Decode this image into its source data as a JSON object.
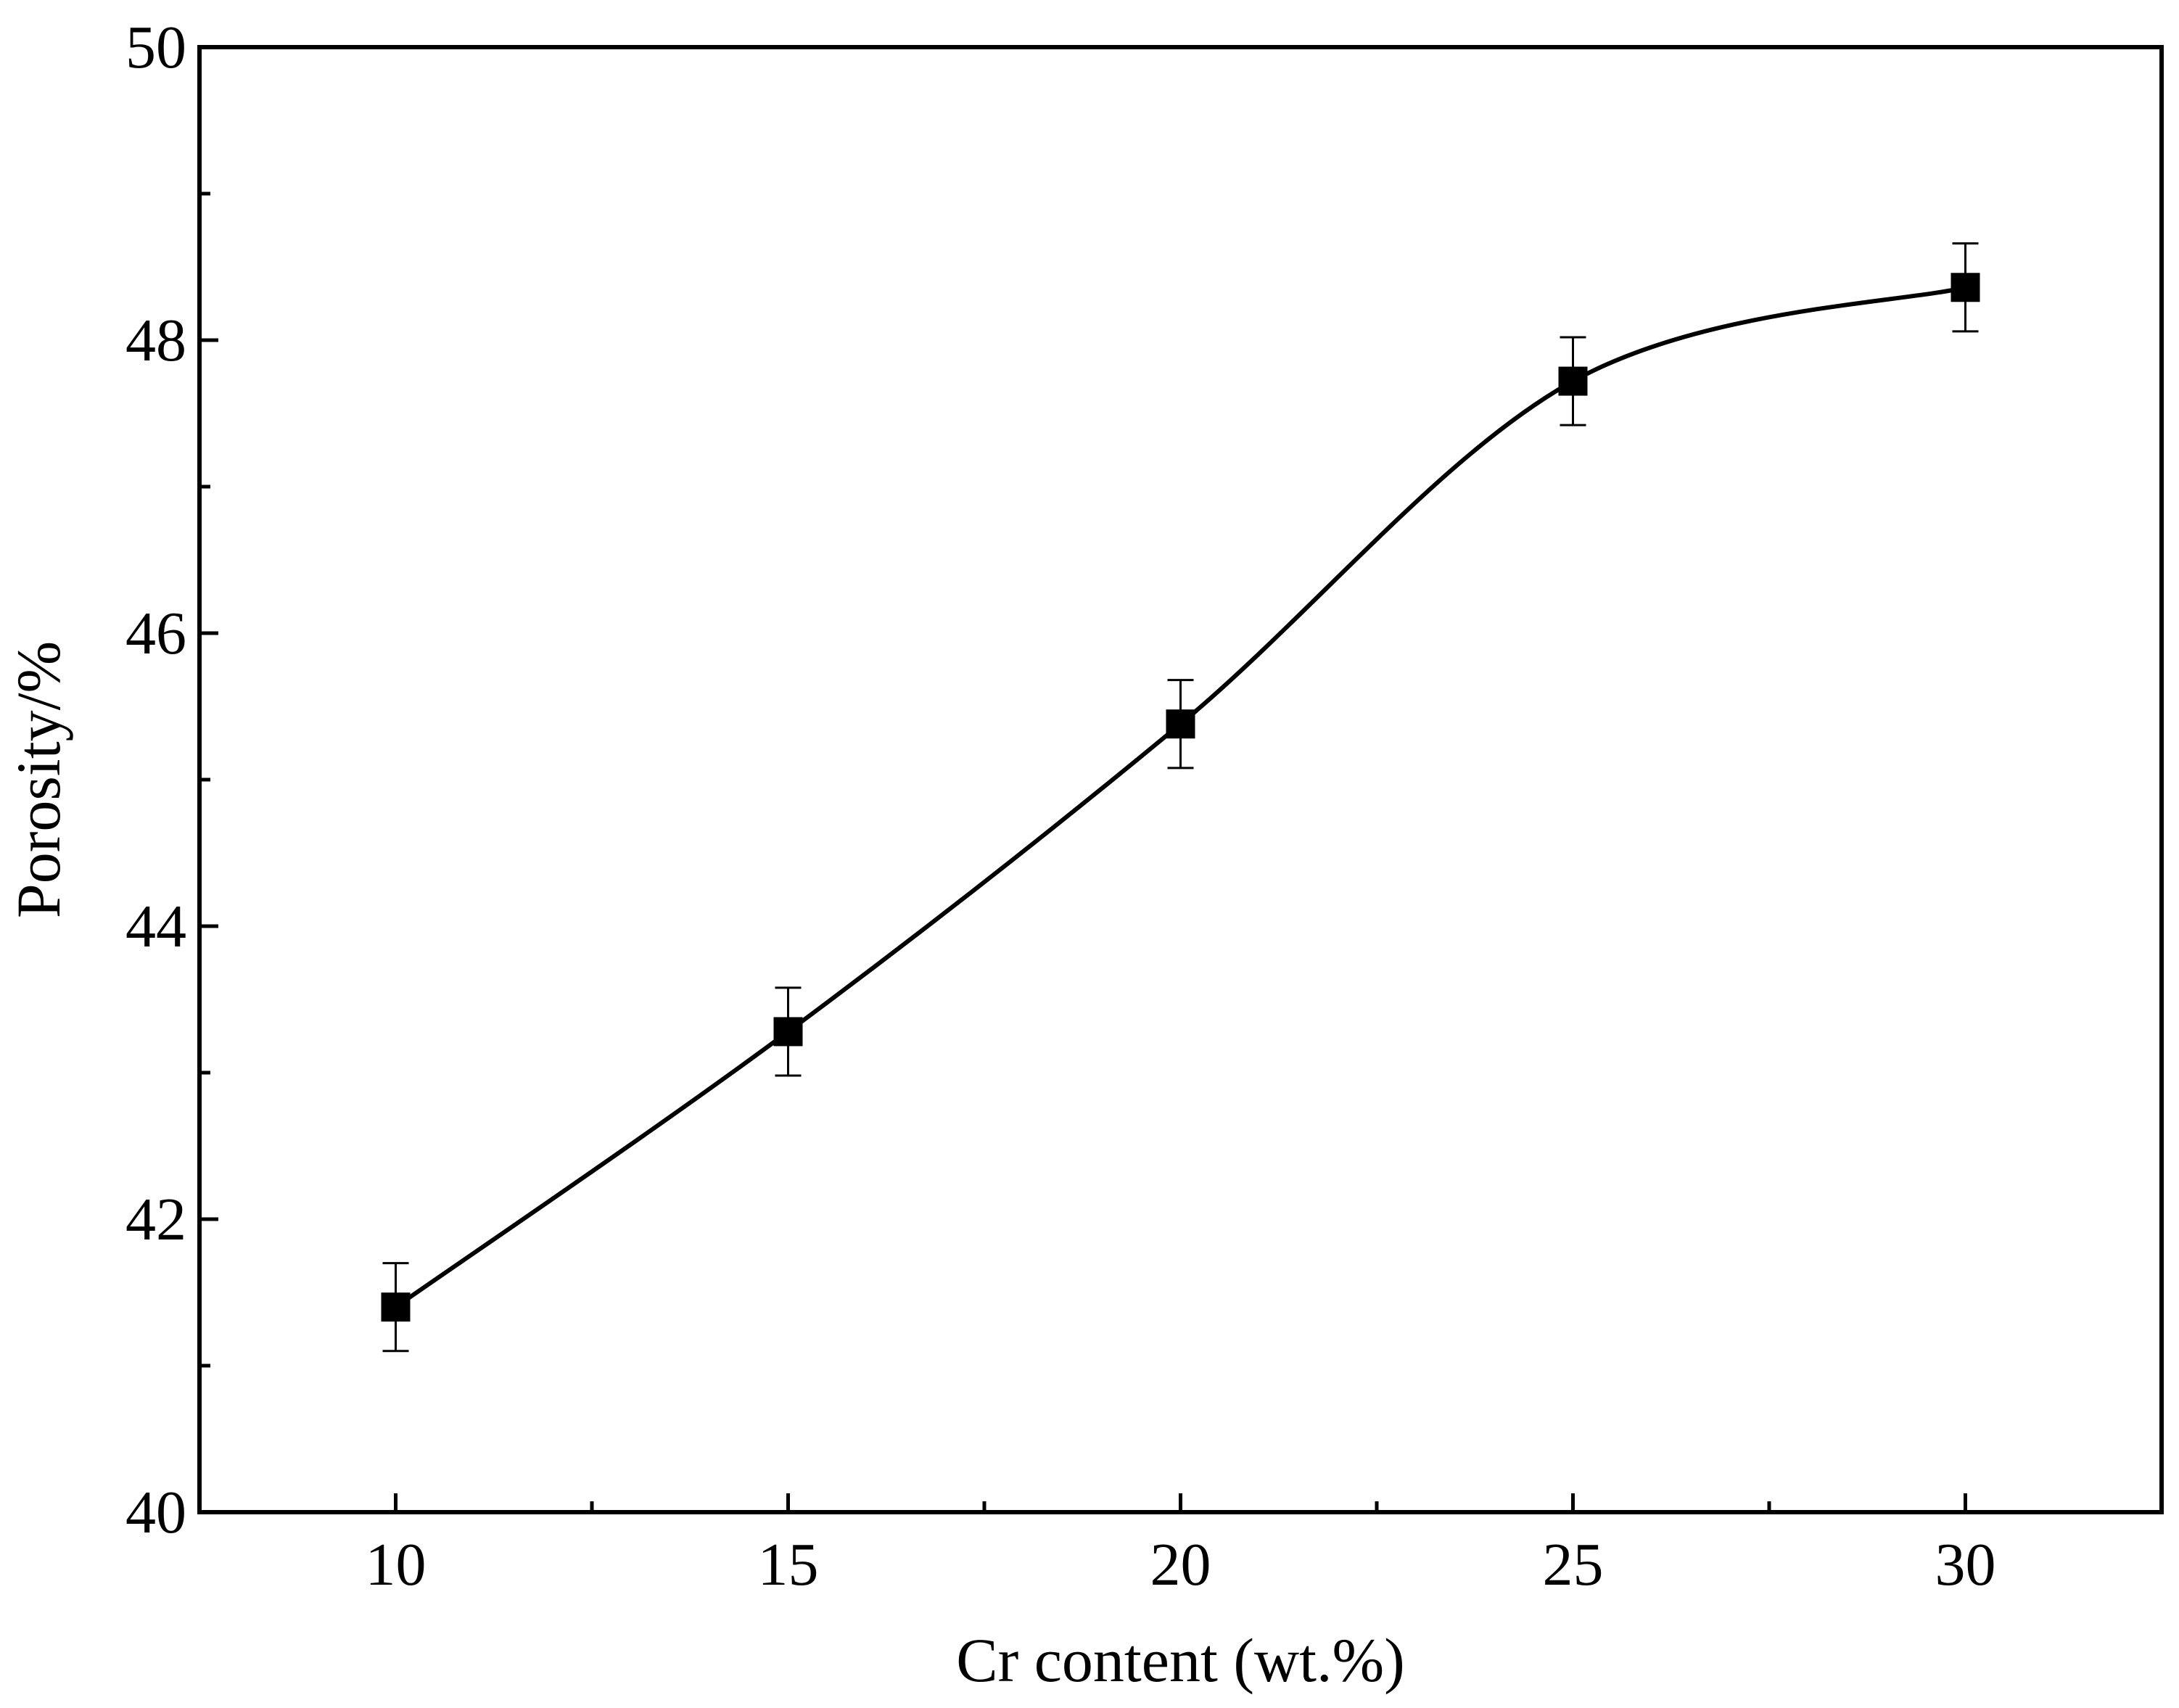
{
  "chart_data": {
    "type": "scatter",
    "title": "",
    "xlabel": "Cr content (wt.%)",
    "ylabel": "Porosity/%",
    "xlim": [
      7.5,
      32.5
    ],
    "ylim": [
      40,
      50
    ],
    "x_ticks": [
      10,
      15,
      20,
      25,
      30
    ],
    "y_ticks": [
      40,
      42,
      44,
      46,
      48,
      50
    ],
    "x_minor_ticks": [
      12.5,
      17.5,
      22.5,
      27.5
    ],
    "y_minor_ticks": [
      41,
      43,
      45,
      47,
      49
    ],
    "grid": false,
    "legend": "none",
    "series": [
      {
        "marker": "filled-square",
        "color": "#000000",
        "x": [
          10,
          15,
          20,
          25,
          30
        ],
        "y": [
          41.4,
          43.28,
          45.38,
          47.72,
          48.36
        ],
        "error": [
          0.3,
          0.3,
          0.3,
          0.3,
          0.3
        ],
        "fit_curve": "smooth"
      }
    ]
  }
}
